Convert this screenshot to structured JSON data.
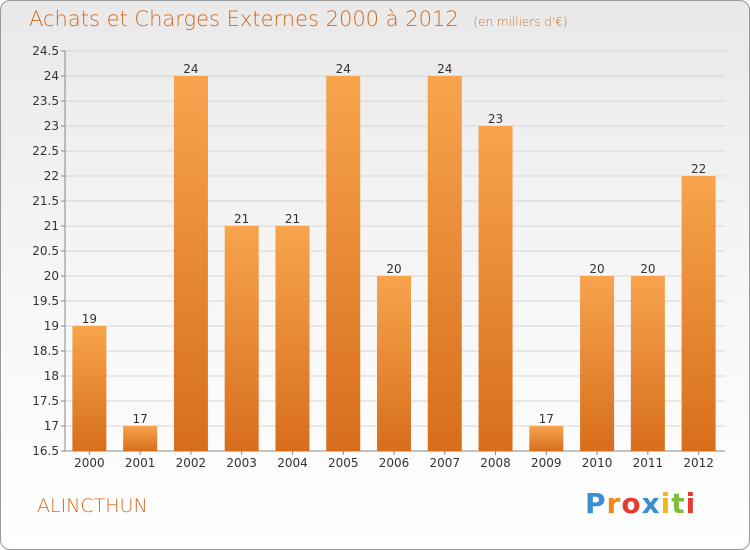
{
  "header": {
    "title": "Achats et Charges Externes 2000 à 2012",
    "subtitle": "(en milliers d'€)"
  },
  "footer": {
    "commune": "ALINCTHUN",
    "logo_letters": [
      "P",
      "r",
      "o",
      "x",
      "i",
      "t",
      "i"
    ],
    "logo_colors": [
      "#3a8fd0",
      "#f08a1c",
      "#e63b2e",
      "#3a8fd0",
      "#f3b61f",
      "#7bbf3a",
      "#e63b2e"
    ]
  },
  "colors": {
    "bar_light": "#f7a44d",
    "bar_dark": "#d86e1c",
    "text": "#333333",
    "title": "#d2691e"
  },
  "chart_data": {
    "type": "bar",
    "title": "Achats et Charges Externes 2000 à 2012",
    "categories": [
      "2000",
      "2001",
      "2002",
      "2003",
      "2004",
      "2005",
      "2006",
      "2007",
      "2008",
      "2009",
      "2010",
      "2011",
      "2012"
    ],
    "values": [
      19,
      17,
      24,
      21,
      21,
      24,
      20,
      24,
      23,
      17,
      20,
      20,
      22
    ],
    "ylim": [
      16.5,
      24.5
    ],
    "yticks": [
      "16.5",
      "17",
      "17.5",
      "18",
      "18.5",
      "19",
      "19.5",
      "20",
      "20.5",
      "21",
      "21.5",
      "22",
      "22.5",
      "23",
      "23.5",
      "24",
      "24.5"
    ],
    "grid": true,
    "xlabel": "",
    "ylabel": ""
  }
}
